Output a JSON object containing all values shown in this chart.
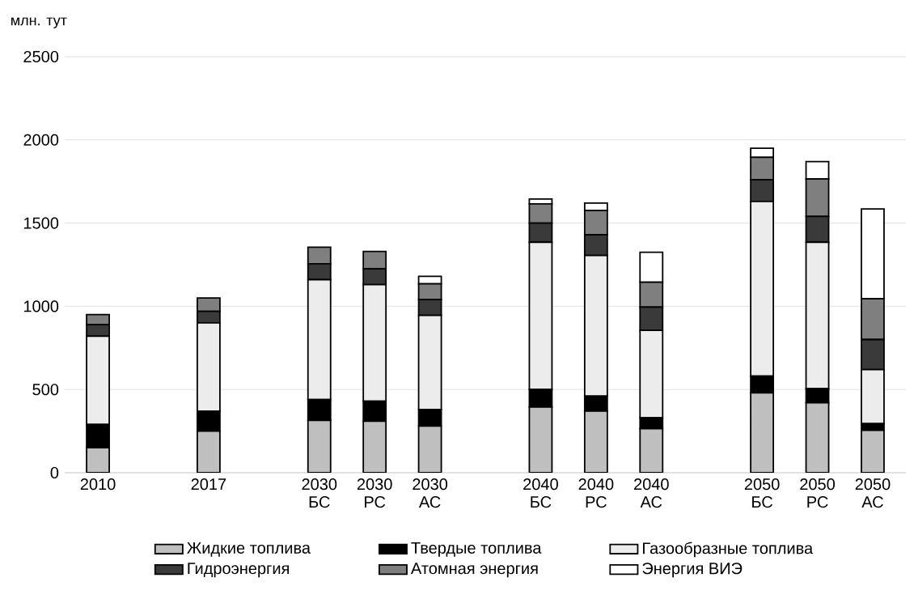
{
  "chart_data": {
    "type": "bar",
    "stacked": true,
    "ylabel": "млн. тут",
    "categories": [
      "2010",
      null,
      "2017",
      null,
      "2030 БС",
      "2030 РС",
      "2030 АС",
      null,
      "2040 БС",
      "2040 РС",
      "2040 АС",
      null,
      "2050 БС",
      "2050 РС",
      "2050 АС"
    ],
    "series": [
      {
        "name": "Жидкие топлива",
        "color": "#bfbfbf",
        "values": [
          150,
          null,
          250,
          null,
          315,
          310,
          280,
          null,
          395,
          370,
          265,
          null,
          480,
          420,
          255
        ]
      },
      {
        "name": "Твердые топлива",
        "color": "#000000",
        "values": [
          140,
          null,
          120,
          null,
          125,
          120,
          100,
          null,
          105,
          90,
          65,
          null,
          100,
          85,
          40
        ]
      },
      {
        "name": "Газообразные топлива",
        "color": "#ececec",
        "values": [
          530,
          null,
          530,
          null,
          720,
          700,
          565,
          null,
          885,
          845,
          525,
          null,
          1050,
          880,
          325
        ]
      },
      {
        "name": "Гидроэнергия",
        "color": "#3a3a3a",
        "values": [
          70,
          null,
          70,
          null,
          95,
          95,
          95,
          null,
          115,
          125,
          140,
          null,
          130,
          155,
          180
        ]
      },
      {
        "name": "Атомная энергия",
        "color": "#7f7f7f",
        "values": [
          60,
          null,
          80,
          null,
          100,
          105,
          95,
          null,
          115,
          145,
          150,
          null,
          135,
          225,
          245
        ]
      },
      {
        "name": "Энергия ВИЭ",
        "color": "#ffffff",
        "values": [
          0,
          null,
          0,
          null,
          0,
          0,
          45,
          null,
          30,
          45,
          180,
          null,
          55,
          105,
          540
        ]
      }
    ],
    "ylim": [
      0,
      2500
    ],
    "yticks": [
      0,
      500,
      1000,
      1500,
      2000,
      2500
    ],
    "grid": "y",
    "legend": "bottom"
  }
}
